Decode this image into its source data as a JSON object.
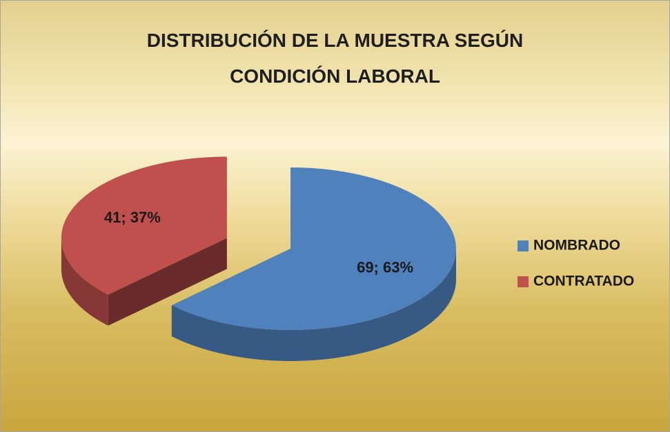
{
  "chart_data": {
    "type": "pie",
    "title": "DISTRIBUCIÓN DE LA MUESTRA SEGÚN CONDICIÓN LABORAL",
    "categories": [
      "NOMBRADO",
      "CONTRATADO"
    ],
    "values": [
      69,
      41
    ],
    "value_labels": [
      "69; 63%",
      "41; 37%"
    ],
    "colors": [
      "#4f81bd",
      "#c0504d"
    ],
    "legend": "right"
  }
}
